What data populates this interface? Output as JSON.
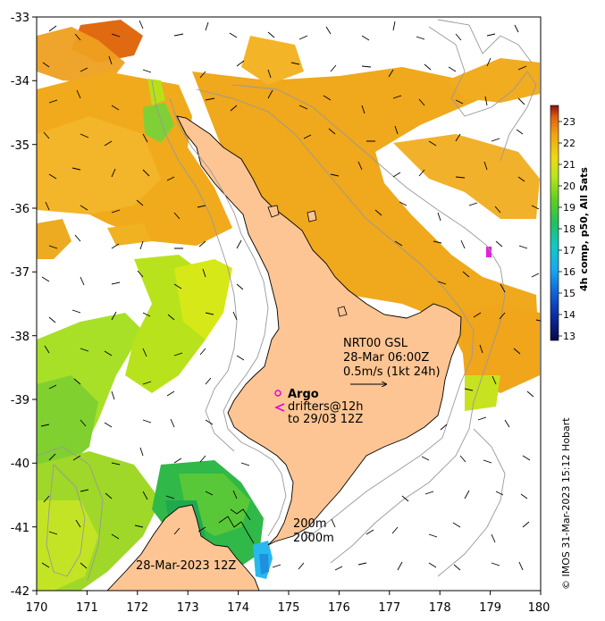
{
  "map": {
    "lon_range": [
      170,
      180
    ],
    "lat_range": [
      -42,
      -33
    ],
    "lon_ticks": [
      "170",
      "171",
      "172",
      "173",
      "174",
      "175",
      "176",
      "177",
      "178",
      "179",
      "180"
    ],
    "lat_ticks": [
      "-33",
      "-34",
      "-35",
      "-36",
      "-37",
      "-38",
      "-39",
      "-40",
      "-41",
      "-42"
    ],
    "land_color": "#fdc593",
    "coastline_color": "#000000",
    "contour_color": "#999999"
  },
  "annotations": {
    "product_line1": "NRT00 GSL",
    "product_line2": "28-Mar 06:00Z",
    "scale_line": "0.5m/s (1kt 24h)",
    "argo_label": "Argo",
    "drifters_line1": "drifters@12h",
    "drifters_line2": "to 29/03 12Z",
    "depth_200": "200m",
    "depth_2000": "2000m",
    "sst_date": "28-Mar-2023 12Z"
  },
  "colorbar": {
    "title": "4h comp, p50, All Sats",
    "ticks": [
      "13",
      "14",
      "15",
      "16",
      "17",
      "18",
      "19",
      "20",
      "21",
      "22",
      "23"
    ],
    "range": [
      13,
      23
    ],
    "colors": [
      "#08084a",
      "#0a2aa0",
      "#1060d8",
      "#18a8f0",
      "#10c8c8",
      "#20c060",
      "#60d020",
      "#b8e818",
      "#f0d810",
      "#f0a010",
      "#e06010",
      "#901010"
    ]
  },
  "credit": "© IMOS 31-Mar-2023 15:12 Hobart"
}
